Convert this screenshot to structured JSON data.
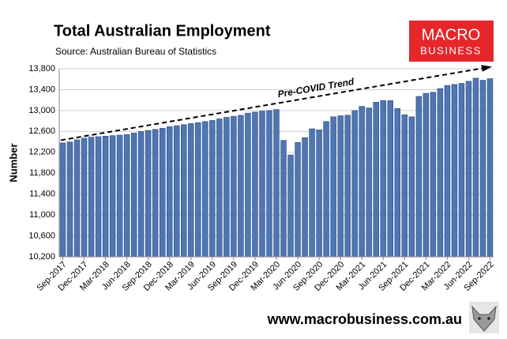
{
  "chart_data": {
    "type": "bar",
    "title": "Total Australian Employment",
    "subtitle": "Source: Australian Bureau of Statistics",
    "y_label": "Number",
    "annotation": "Pre-COVID Trend",
    "logo": {
      "line1": "MACRO",
      "line2": "BUSINESS"
    },
    "website": "www.macrobusiness.com.au",
    "color": "#4f76b3",
    "grid": true,
    "categories": [
      "Sep-2017",
      null,
      null,
      "Dec-2017",
      null,
      null,
      "Mar-2018",
      null,
      null,
      "Jun-2018",
      null,
      null,
      "Sep-2018",
      null,
      null,
      "Dec-2018",
      null,
      null,
      "Mar-2019",
      null,
      null,
      "Jun-2019",
      null,
      null,
      "Sep-2019",
      null,
      null,
      "Dec-2019",
      null,
      null,
      "Mar-2020",
      null,
      null,
      "Jun-2020",
      null,
      null,
      "Sep-2020",
      null,
      null,
      "Dec-2020",
      null,
      null,
      "Mar-2021",
      null,
      null,
      "Jun-2021",
      null,
      null,
      "Sep-2021",
      null,
      null,
      "Dec-2021",
      null,
      null,
      "Mar-2022",
      null,
      null,
      "Jun-2022",
      null,
      null,
      "Sep-2022"
    ],
    "values": [
      12380,
      12400,
      12440,
      12470,
      12490,
      12500,
      12510,
      12520,
      12530,
      12540,
      12570,
      12600,
      12620,
      12640,
      12660,
      12690,
      12710,
      12730,
      12750,
      12770,
      12790,
      12810,
      12840,
      12870,
      12890,
      12910,
      12950,
      12970,
      12990,
      13000,
      13020,
      12430,
      12150,
      12390,
      12480,
      12650,
      12630,
      12790,
      12880,
      12900,
      12910,
      13000,
      13080,
      13050,
      13160,
      13190,
      13190,
      13040,
      12920,
      12880,
      13270,
      13330,
      13350,
      13420,
      13480,
      13500,
      13520,
      13560,
      13620,
      13580,
      13610
    ],
    "ylim": [
      10200,
      13800
    ],
    "yticks": [
      {
        "value": 10200,
        "label": "10,200"
      },
      {
        "value": 10600,
        "label": "10,600"
      },
      {
        "value": 11000,
        "label": "11,000"
      },
      {
        "value": 11400,
        "label": "11,400"
      },
      {
        "value": 11800,
        "label": "11,800"
      },
      {
        "value": 12200,
        "label": "12,200"
      },
      {
        "value": 12600,
        "label": "12,600"
      },
      {
        "value": 13000,
        "label": "13,000"
      },
      {
        "value": 13400,
        "label": "13,400"
      },
      {
        "value": 13800,
        "label": "13,800"
      }
    ]
  }
}
